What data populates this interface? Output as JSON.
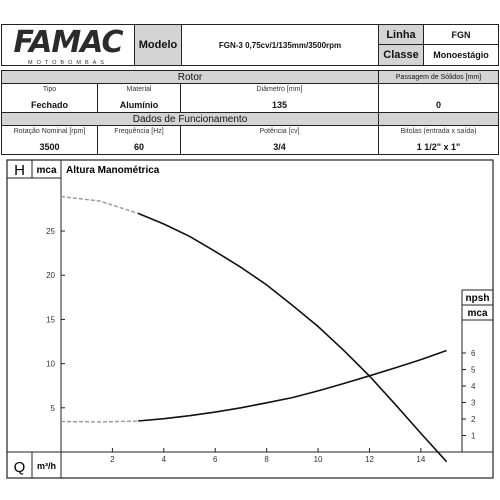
{
  "header": {
    "brand": "FAMAC",
    "brand_sub": "MOTOBOMBAS",
    "modelo_label": "Modelo",
    "modelo_value": "FGN-3 0,75cv/1/135mm/3500rpm",
    "linha_label": "Linha",
    "linha_value": "FGN",
    "classe_label": "Classe",
    "classe_value": "Monoestágio"
  },
  "rotor": {
    "title": "Rotor",
    "tipo_label": "Tipo",
    "tipo_value": "Fechado",
    "material_label": "Material",
    "material_value": "Alumínio",
    "diametro_label": "Diâmetro [mm]",
    "diametro_value": "135",
    "passagem_label": "Passagem de Sólidos [mm]",
    "passagem_value": "0"
  },
  "funcionamento": {
    "title": "Dados de Funcionamento",
    "rotacao_label": "Rotação Nominal [rpm]",
    "rotacao_value": "3500",
    "frequencia_label": "Frequência [Hz]",
    "frequencia_value": "60",
    "potencia_label": "Potência [cv]",
    "potencia_value": "3/4",
    "bitolas_label": "Bitolas (entrada x saída)",
    "bitolas_value": "1 1/2\" x 1\""
  },
  "chart_labels": {
    "h_letter": "H",
    "h_unit": "mca",
    "title": "Altura Manométrica",
    "q_letter": "Q",
    "q_unit": "m³/h",
    "npsh_label": "npsh",
    "npsh_unit": "mca"
  },
  "chart_data": {
    "type": "line",
    "title": "Altura Manométrica",
    "x_axis": {
      "label": "m³/h",
      "range": [
        0,
        15.6
      ],
      "ticks": [
        2,
        4,
        6,
        8,
        10,
        12,
        14
      ]
    },
    "y_axis_left": {
      "label": "mca",
      "range": [
        0,
        31
      ],
      "ticks": [
        5,
        10,
        15,
        20,
        25
      ]
    },
    "y_axis_right": {
      "label": "npsh mca",
      "range": [
        0,
        8
      ],
      "ticks": [
        1,
        2,
        3,
        4,
        5,
        6
      ]
    },
    "series": [
      {
        "axis": "left",
        "extrapolated": {
          "x": [
            0,
            1.5,
            3
          ],
          "y": [
            28.9,
            28.4,
            27
          ]
        },
        "solid": {
          "x": [
            3,
            4,
            5,
            6,
            7,
            8,
            9,
            10,
            11,
            12,
            13,
            14,
            15
          ],
          "y": [
            27,
            25.8,
            24.4,
            22.7,
            20.9,
            18.9,
            16.6,
            14.2,
            11.5,
            8.6,
            5.4,
            2.1,
            -1.1
          ]
        }
      },
      {
        "axis": "right",
        "extrapolated": {
          "x": [
            0,
            1.5,
            3
          ],
          "y": [
            1.85,
            1.82,
            1.88
          ]
        },
        "solid": {
          "x": [
            3,
            4,
            5,
            6,
            7,
            8,
            9,
            10,
            11,
            12,
            13,
            14,
            15
          ],
          "y": [
            1.88,
            2.02,
            2.2,
            2.42,
            2.68,
            2.98,
            3.3,
            3.7,
            4.15,
            4.62,
            5.1,
            5.6,
            6.15
          ]
        }
      }
    ],
    "grid": false,
    "colors": {
      "solid": "#111111",
      "extrapolated": "#999999"
    }
  }
}
